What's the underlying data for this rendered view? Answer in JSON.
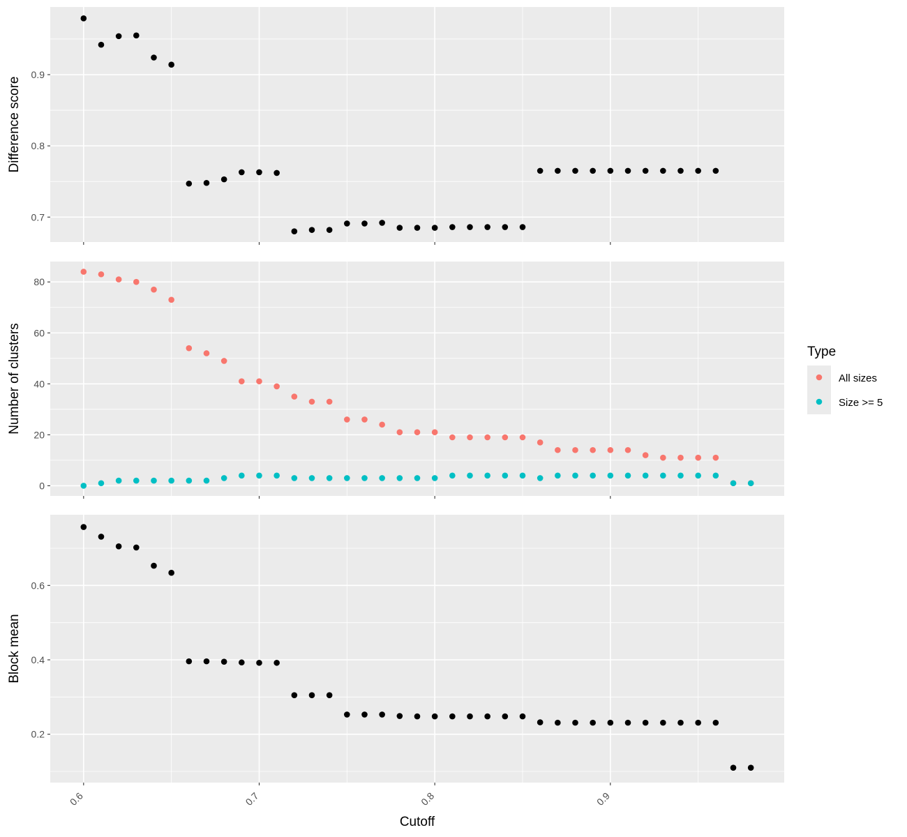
{
  "chart_data": {
    "type": "scatter",
    "x_title": "Cutoff",
    "x_ticks": [
      "0.6",
      "0.7",
      "0.8",
      "0.9"
    ],
    "x_tick_values": [
      0.6,
      0.7,
      0.8,
      0.9
    ],
    "xlim": [
      0.581,
      0.999
    ],
    "grid": true,
    "colors": {
      "panel_bg": "#ebebeb",
      "grid": "#ffffff",
      "point_default": "#000000",
      "all_sizes": "#F8766D",
      "size_ge_5": "#00BFC4",
      "legend_key_bg": "#ebebeb"
    },
    "legend": {
      "title": "Type",
      "position": "right",
      "entries": [
        {
          "label": "All sizes",
          "color": "#F8766D"
        },
        {
          "label": "Size >= 5",
          "color": "#00BFC4"
        }
      ]
    },
    "panels": [
      {
        "ylabel": "Difference score",
        "ylim": [
          0.665,
          0.995
        ],
        "y_ticks": [
          "0.7",
          "0.8",
          "0.9"
        ],
        "y_tick_values": [
          0.7,
          0.8,
          0.9
        ],
        "series": [
          {
            "color": "#000000",
            "x": [
              0.6,
              0.61,
              0.62,
              0.63,
              0.64,
              0.65,
              0.66,
              0.67,
              0.68,
              0.69,
              0.7,
              0.71,
              0.72,
              0.73,
              0.74,
              0.75,
              0.76,
              0.77,
              0.78,
              0.79,
              0.8,
              0.81,
              0.82,
              0.83,
              0.84,
              0.85,
              0.86,
              0.87,
              0.88,
              0.89,
              0.9,
              0.91,
              0.92,
              0.93,
              0.94,
              0.95,
              0.96
            ],
            "y": [
              0.979,
              0.942,
              0.954,
              0.955,
              0.924,
              0.914,
              0.747,
              0.748,
              0.753,
              0.763,
              0.763,
              0.762,
              0.68,
              0.682,
              0.682,
              0.691,
              0.691,
              0.692,
              0.685,
              0.685,
              0.685,
              0.686,
              0.686,
              0.686,
              0.686,
              0.686,
              0.765,
              0.765,
              0.765,
              0.765,
              0.765,
              0.765,
              0.765,
              0.765,
              0.765,
              0.765,
              0.765
            ]
          }
        ]
      },
      {
        "ylabel": "Number of clusters",
        "ylim": [
          -4,
          88
        ],
        "y_ticks": [
          "0",
          "20",
          "40",
          "60",
          "80"
        ],
        "y_tick_values": [
          0,
          20,
          40,
          60,
          80
        ],
        "series": [
          {
            "name": "All sizes",
            "color": "#F8766D",
            "x": [
              0.6,
              0.61,
              0.62,
              0.63,
              0.64,
              0.65,
              0.66,
              0.67,
              0.68,
              0.69,
              0.7,
              0.71,
              0.72,
              0.73,
              0.74,
              0.75,
              0.76,
              0.77,
              0.78,
              0.79,
              0.8,
              0.81,
              0.82,
              0.83,
              0.84,
              0.85,
              0.86,
              0.87,
              0.88,
              0.89,
              0.9,
              0.91,
              0.92,
              0.93,
              0.94,
              0.95,
              0.96,
              0.97,
              0.98
            ],
            "y": [
              84,
              83,
              81,
              80,
              77,
              73,
              54,
              52,
              49,
              41,
              41,
              39,
              35,
              33,
              33,
              26,
              26,
              24,
              21,
              21,
              21,
              19,
              19,
              19,
              19,
              19,
              17,
              14,
              14,
              14,
              14,
              14,
              12,
              11,
              11,
              11,
              11,
              1,
              1
            ]
          },
          {
            "name": "Size >= 5",
            "color": "#00BFC4",
            "x": [
              0.6,
              0.61,
              0.62,
              0.63,
              0.64,
              0.65,
              0.66,
              0.67,
              0.68,
              0.69,
              0.7,
              0.71,
              0.72,
              0.73,
              0.74,
              0.75,
              0.76,
              0.77,
              0.78,
              0.79,
              0.8,
              0.81,
              0.82,
              0.83,
              0.84,
              0.85,
              0.86,
              0.87,
              0.88,
              0.89,
              0.9,
              0.91,
              0.92,
              0.93,
              0.94,
              0.95,
              0.96,
              0.97,
              0.98
            ],
            "y": [
              0,
              1,
              2,
              2,
              2,
              2,
              2,
              2,
              3,
              4,
              4,
              4,
              3,
              3,
              3,
              3,
              3,
              3,
              3,
              3,
              3,
              4,
              4,
              4,
              4,
              4,
              3,
              4,
              4,
              4,
              4,
              4,
              4,
              4,
              4,
              4,
              4,
              1,
              1
            ]
          }
        ]
      },
      {
        "ylabel": "Block mean",
        "ylim": [
          0.07,
          0.79
        ],
        "y_ticks": [
          "0.2",
          "0.4",
          "0.6"
        ],
        "y_tick_values": [
          0.2,
          0.4,
          0.6
        ],
        "series": [
          {
            "color": "#000000",
            "x": [
              0.6,
              0.61,
              0.62,
              0.63,
              0.64,
              0.65,
              0.66,
              0.67,
              0.68,
              0.69,
              0.7,
              0.71,
              0.72,
              0.73,
              0.74,
              0.75,
              0.76,
              0.77,
              0.78,
              0.79,
              0.8,
              0.81,
              0.82,
              0.83,
              0.84,
              0.85,
              0.86,
              0.87,
              0.88,
              0.89,
              0.9,
              0.91,
              0.92,
              0.93,
              0.94,
              0.95,
              0.96,
              0.97,
              0.98
            ],
            "y": [
              0.757,
              0.731,
              0.705,
              0.702,
              0.653,
              0.634,
              0.396,
              0.396,
              0.395,
              0.393,
              0.392,
              0.392,
              0.305,
              0.305,
              0.305,
              0.253,
              0.253,
              0.253,
              0.249,
              0.248,
              0.248,
              0.248,
              0.248,
              0.248,
              0.248,
              0.248,
              0.232,
              0.231,
              0.231,
              0.231,
              0.231,
              0.231,
              0.231,
              0.231,
              0.231,
              0.231,
              0.231,
              0.11,
              0.11
            ]
          }
        ]
      }
    ]
  }
}
